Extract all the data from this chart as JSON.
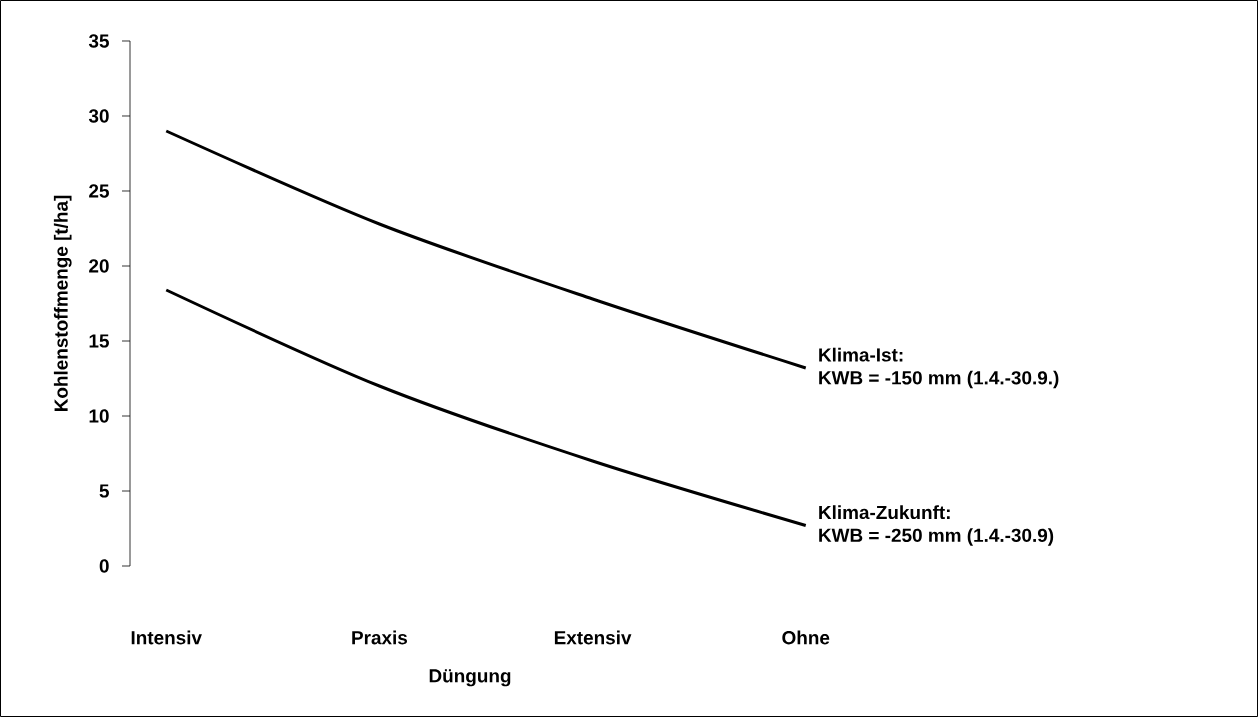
{
  "chart_data": {
    "type": "line",
    "xlabel": "Düngung",
    "ylabel": "Kohlenstoffmenge [t/ha]",
    "categories": [
      "Intensiv",
      "Praxis",
      "Extensiv",
      "Ohne"
    ],
    "series": [
      {
        "color": "#000000",
        "values": [
          29.0,
          22.8,
          17.8,
          13.2
        ]
      },
      {
        "color": "#000000",
        "values": [
          18.4,
          12.0,
          7.0,
          2.7
        ]
      }
    ],
    "ylim": [
      0,
      35
    ],
    "yticks": [
      0,
      5,
      10,
      15,
      20,
      25,
      30,
      35
    ],
    "annotations": [
      "Klima-Ist:",
      "KWB = -150 mm (1.4.-30.9.)",
      "Klima-Zukunft:",
      "KWB = -250 mm (1.4.-30.9)"
    ],
    "grid": false,
    "marker": "none",
    "line_style": "solid"
  }
}
